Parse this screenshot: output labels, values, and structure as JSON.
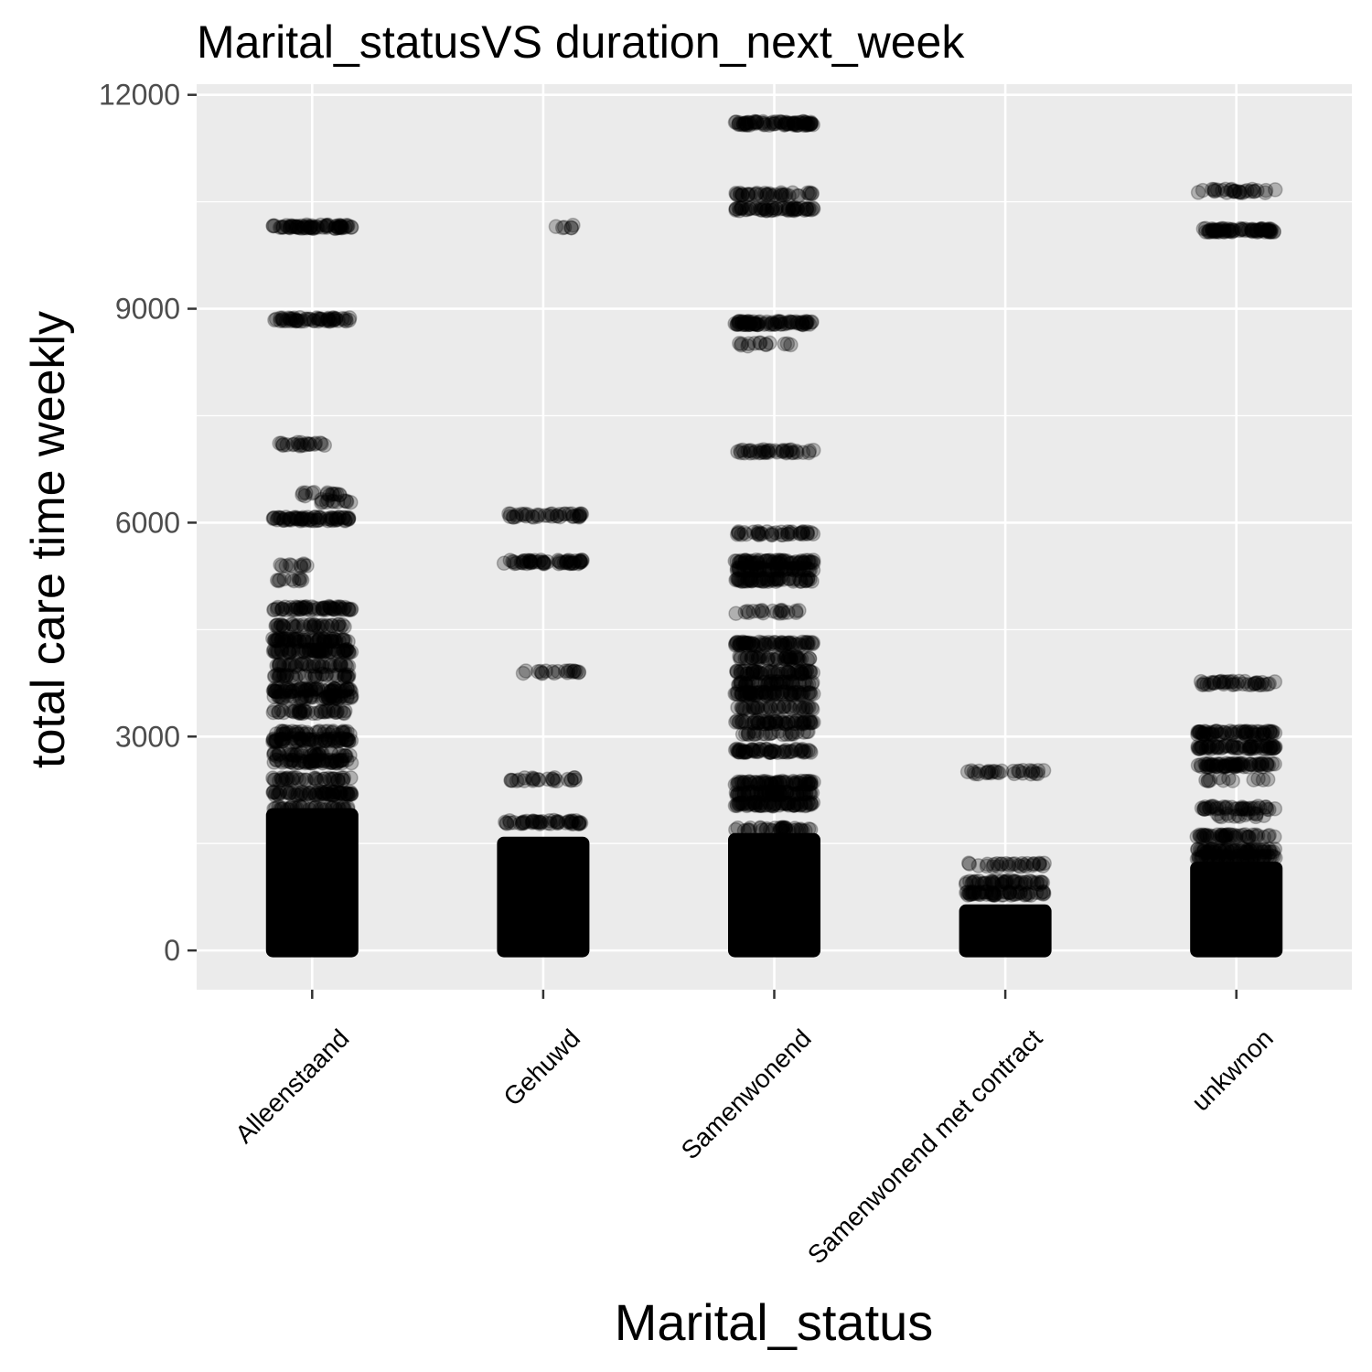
{
  "chart_data": {
    "type": "scatter",
    "title": "Marital_statusVS duration_next_week",
    "xlabel": "Marital_status",
    "ylabel": "total care time weekly",
    "categories": [
      "Alleenstaand",
      "Gehuwd",
      "Samenwonend",
      "Samenwonend met contract",
      "unkwnon"
    ],
    "y_ticks": [
      "0",
      "3000",
      "6000",
      "9000",
      "12000"
    ],
    "y_tick_values": [
      0,
      3000,
      6000,
      9000,
      12000
    ],
    "ylim": [
      -550,
      12150
    ],
    "grid": true,
    "point_color": "#000000",
    "point_alpha": 0.25,
    "panel_background": "#ebebeb",
    "gridline_color": "#ffffff",
    "jitter_width": 0.4,
    "series": [
      {
        "category": "Alleenstaand",
        "dense_range": [
          0,
          1900
        ],
        "bands": [
          {
            "y": 10150,
            "frac": 1.0,
            "count": 70
          },
          {
            "y": 8850,
            "frac": 1.0,
            "count": 60
          },
          {
            "y": 7100,
            "frac": 0.6,
            "count": 22
          },
          {
            "y": 6400,
            "frac": 0.5,
            "count": 15
          },
          {
            "y": 6300,
            "frac": 0.4,
            "count": 12
          },
          {
            "y": 6050,
            "frac": 1.0,
            "count": 70
          },
          {
            "y": 5400,
            "frac": 0.4,
            "count": 10
          },
          {
            "y": 5200,
            "frac": 0.4,
            "count": 10
          },
          {
            "y": 4800,
            "frac": 1.0,
            "count": 60
          },
          {
            "y": 4550,
            "frac": 0.9,
            "count": 40
          },
          {
            "y": 4350,
            "frac": 1.0,
            "count": 70
          },
          {
            "y": 4200,
            "frac": 1.0,
            "count": 70
          },
          {
            "y": 4000,
            "frac": 1.0,
            "count": 40
          },
          {
            "y": 3850,
            "frac": 1.0,
            "count": 40
          },
          {
            "y": 3650,
            "frac": 1.0,
            "count": 70
          },
          {
            "y": 3550,
            "frac": 1.0,
            "count": 50
          },
          {
            "y": 3350,
            "frac": 1.0,
            "count": 40
          },
          {
            "y": 3050,
            "frac": 1.0,
            "count": 40
          },
          {
            "y": 2950,
            "frac": 1.0,
            "count": 70
          },
          {
            "y": 2750,
            "frac": 1.0,
            "count": 40
          },
          {
            "y": 2650,
            "frac": 1.0,
            "count": 60
          },
          {
            "y": 2400,
            "frac": 1.0,
            "count": 40
          },
          {
            "y": 2200,
            "frac": 1.0,
            "count": 70
          },
          {
            "y": 2000,
            "frac": 1.0,
            "count": 40
          }
        ]
      },
      {
        "category": "Gehuwd",
        "dense_range": [
          0,
          1500
        ],
        "bands": [
          {
            "y": 10150,
            "frac": 0.3,
            "count": 6
          },
          {
            "y": 6100,
            "frac": 1.0,
            "count": 40
          },
          {
            "y": 5450,
            "frac": 1.0,
            "count": 60
          },
          {
            "y": 3900,
            "frac": 0.8,
            "count": 20
          },
          {
            "y": 2400,
            "frac": 1.0,
            "count": 25
          },
          {
            "y": 1800,
            "frac": 1.0,
            "count": 50
          }
        ]
      },
      {
        "category": "Samenwonend",
        "dense_range": [
          0,
          1550
        ],
        "bands": [
          {
            "y": 11600,
            "frac": 1.0,
            "count": 80
          },
          {
            "y": 10600,
            "frac": 1.0,
            "count": 40
          },
          {
            "y": 10400,
            "frac": 1.0,
            "count": 60
          },
          {
            "y": 8800,
            "frac": 1.0,
            "count": 80
          },
          {
            "y": 8500,
            "frac": 0.7,
            "count": 14
          },
          {
            "y": 7000,
            "frac": 1.0,
            "count": 40
          },
          {
            "y": 5850,
            "frac": 1.0,
            "count": 40
          },
          {
            "y": 5450,
            "frac": 1.0,
            "count": 70
          },
          {
            "y": 5350,
            "frac": 1.0,
            "count": 60
          },
          {
            "y": 5200,
            "frac": 1.0,
            "count": 60
          },
          {
            "y": 4750,
            "frac": 0.9,
            "count": 20
          },
          {
            "y": 4300,
            "frac": 1.0,
            "count": 70
          },
          {
            "y": 4100,
            "frac": 1.0,
            "count": 50
          },
          {
            "y": 3900,
            "frac": 1.0,
            "count": 60
          },
          {
            "y": 3750,
            "frac": 1.0,
            "count": 50
          },
          {
            "y": 3600,
            "frac": 1.0,
            "count": 70
          },
          {
            "y": 3400,
            "frac": 1.0,
            "count": 40
          },
          {
            "y": 3200,
            "frac": 1.0,
            "count": 60
          },
          {
            "y": 3050,
            "frac": 0.9,
            "count": 25
          },
          {
            "y": 2800,
            "frac": 1.0,
            "count": 60
          },
          {
            "y": 2350,
            "frac": 1.0,
            "count": 70
          },
          {
            "y": 2200,
            "frac": 1.0,
            "count": 70
          },
          {
            "y": 2050,
            "frac": 1.0,
            "count": 70
          },
          {
            "y": 1700,
            "frac": 1.0,
            "count": 40
          }
        ]
      },
      {
        "category": "Samenwonend met contract",
        "dense_range": [
          0,
          550
        ],
        "bands": [
          {
            "y": 2500,
            "frac": 1.0,
            "count": 30
          },
          {
            "y": 1200,
            "frac": 1.0,
            "count": 30
          },
          {
            "y": 950,
            "frac": 1.0,
            "count": 50
          },
          {
            "y": 800,
            "frac": 1.0,
            "count": 60
          }
        ]
      },
      {
        "category": "unkwnon",
        "dense_range": [
          0,
          1150
        ],
        "bands": [
          {
            "y": 10650,
            "frac": 1.0,
            "count": 30
          },
          {
            "y": 10100,
            "frac": 1.0,
            "count": 80
          },
          {
            "y": 3750,
            "frac": 1.0,
            "count": 40
          },
          {
            "y": 3050,
            "frac": 1.0,
            "count": 70
          },
          {
            "y": 2850,
            "frac": 1.0,
            "count": 70
          },
          {
            "y": 2600,
            "frac": 1.0,
            "count": 70
          },
          {
            "y": 2400,
            "frac": 0.9,
            "count": 12
          },
          {
            "y": 2000,
            "frac": 1.0,
            "count": 40
          },
          {
            "y": 1900,
            "frac": 0.8,
            "count": 15
          },
          {
            "y": 1600,
            "frac": 1.0,
            "count": 50
          },
          {
            "y": 1400,
            "frac": 1.0,
            "count": 70
          },
          {
            "y": 1300,
            "frac": 1.0,
            "count": 70
          }
        ]
      }
    ]
  }
}
